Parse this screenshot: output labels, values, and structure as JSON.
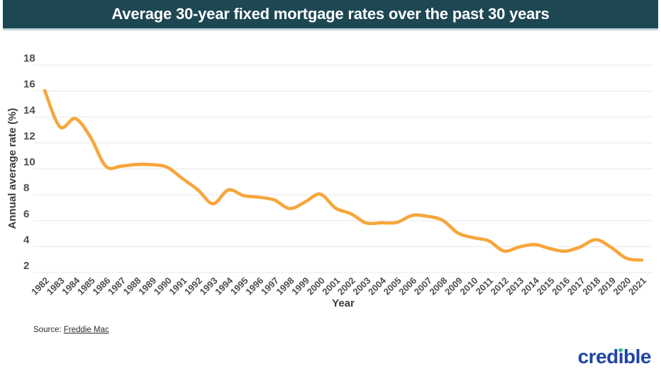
{
  "header": {
    "title": "Average 30-year fixed mortgage rates over the past 30 years",
    "bg_color": "#1d4753",
    "text_color": "#ffffff"
  },
  "chart_data": {
    "type": "line",
    "title": "Average 30-year fixed mortgage rates over the past 30 years",
    "xlabel": "Year",
    "ylabel": "Annual average rate (%)",
    "x": [
      1982,
      1983,
      1984,
      1985,
      1986,
      1987,
      1988,
      1989,
      1990,
      1991,
      1992,
      1993,
      1994,
      1995,
      1996,
      1997,
      1998,
      1999,
      2000,
      2001,
      2002,
      2003,
      2004,
      2005,
      2006,
      2007,
      2008,
      2009,
      2010,
      2011,
      2012,
      2013,
      2014,
      2015,
      2016,
      2017,
      2018,
      2019,
      2020,
      2021
    ],
    "series": [
      {
        "name": "Average 30-year fixed mortgage rate",
        "values": [
          16.04,
          13.24,
          13.88,
          12.43,
          10.19,
          10.21,
          10.34,
          10.32,
          10.13,
          9.25,
          8.39,
          7.31,
          8.38,
          7.93,
          7.81,
          7.6,
          6.94,
          7.44,
          8.05,
          6.97,
          6.54,
          5.83,
          5.84,
          5.87,
          6.41,
          6.34,
          6.03,
          5.04,
          4.69,
          4.45,
          3.66,
          3.98,
          4.17,
          3.85,
          3.65,
          3.99,
          4.54,
          3.94,
          3.1,
          2.96
        ]
      }
    ],
    "ylim": [
      2,
      18
    ],
    "yticks": [
      18,
      16,
      14,
      12,
      10,
      8,
      6,
      4,
      2
    ],
    "grid": true,
    "legend": false,
    "line_color": "#F7A63B",
    "grid_color": "#e8e8e8",
    "tick_label_color": "#4d4d4d"
  },
  "footer": {
    "source_label": "Source: ",
    "source_link": "Freddie Mac",
    "logo_text": "credible",
    "logo": {
      "pre": "cred",
      "i_char": "ı",
      "post": "ble"
    },
    "logo_color": "#1e44a5",
    "logo_dot_color": "#2eb88a"
  }
}
